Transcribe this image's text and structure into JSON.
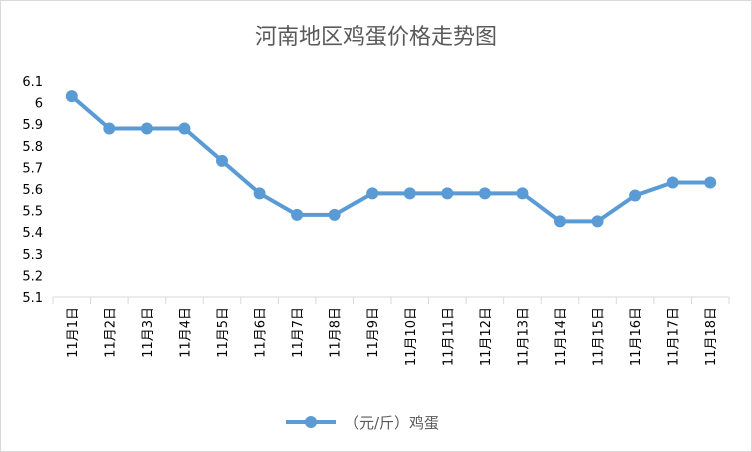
{
  "chart_data": {
    "type": "line",
    "title": "河南地区鸡蛋价格走势图",
    "categories": [
      "11月1日",
      "11月2日",
      "11月3日",
      "11月4日",
      "11月5日",
      "11月6日",
      "11月7日",
      "11月8日",
      "11月9日",
      "11月10日",
      "11月11日",
      "11月12日",
      "11月13日",
      "11月14日",
      "11月15日",
      "11月16日",
      "11月17日",
      "11月18日"
    ],
    "series": [
      {
        "name": "（元/斤）鸡蛋",
        "values": [
          6.03,
          5.88,
          5.88,
          5.88,
          5.73,
          5.58,
          5.48,
          5.48,
          5.58,
          5.58,
          5.58,
          5.58,
          5.58,
          5.45,
          5.45,
          5.57,
          5.63,
          5.63
        ]
      }
    ],
    "y_ticks": [
      "6.1",
      "6",
      "5.9",
      "5.8",
      "5.7",
      "5.6",
      "5.5",
      "5.4",
      "5.3",
      "5.2",
      "5.1"
    ],
    "ylim": [
      5.1,
      6.1
    ],
    "xlabel": "",
    "ylabel": "",
    "grid": false,
    "legend_position": "bottom",
    "line_color": "#5b9bd5",
    "axis_color": "#d9d9d9"
  }
}
